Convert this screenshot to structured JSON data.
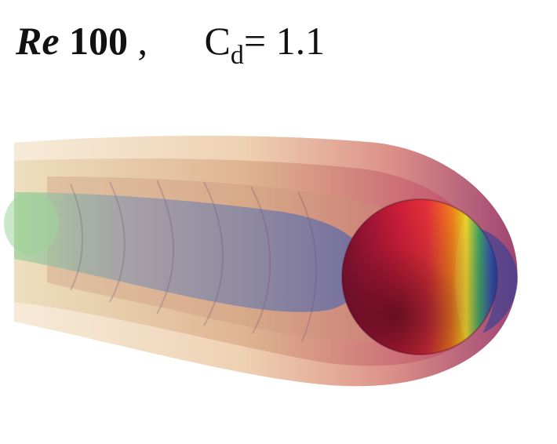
{
  "title": {
    "re_label": "Re",
    "re_value": "100",
    "separator": ",",
    "cd_symbol": "C",
    "cd_subscript": "d",
    "cd_equals": "= 1.1"
  },
  "figure": {
    "subject": "sphere-with-wake-isosurfaces",
    "colors": {
      "sphere_dark": "#6e0f2a",
      "sphere_red": "#e0233a",
      "sphere_orange": "#f08a1a",
      "sphere_yellow": "#e9d21a",
      "sphere_green": "#2f9b54",
      "sphere_blue": "#1f3e9a",
      "wake_core": "#5a68a8",
      "wake_inner": "#b97a6c",
      "wake_outer": "#e9c79a",
      "wake_tail": "#a6d6a0"
    }
  }
}
